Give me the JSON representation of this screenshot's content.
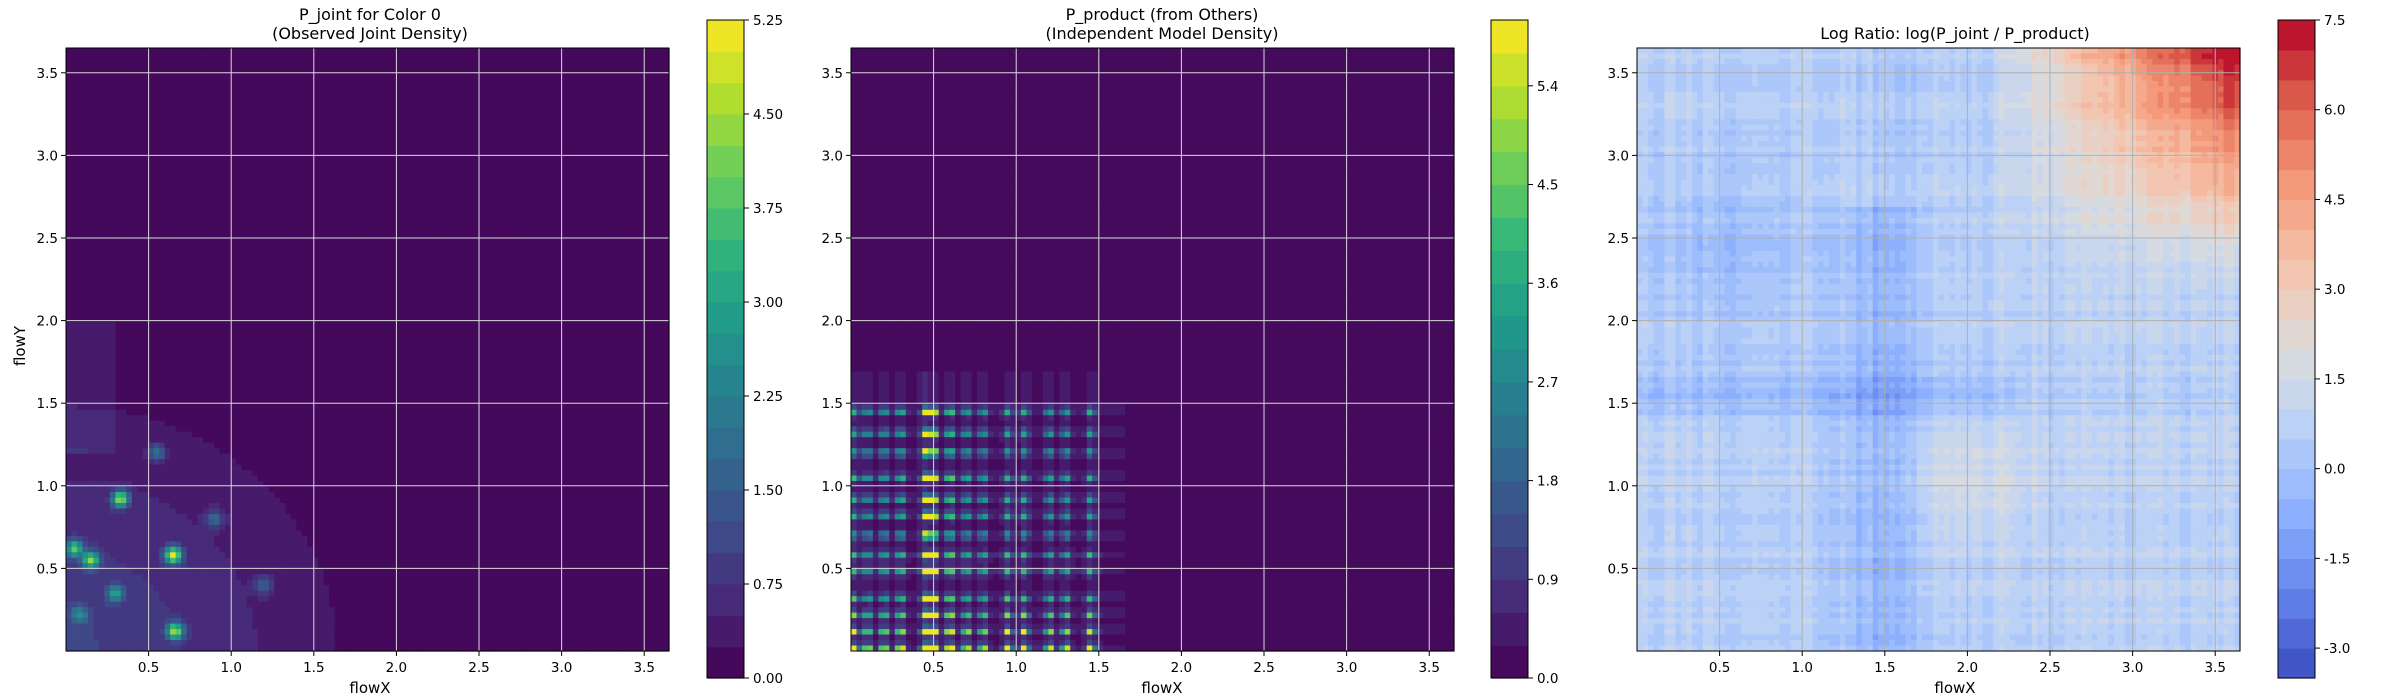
{
  "chart_data": [
    {
      "type": "heatmap",
      "title": "P_joint for Color 0",
      "subtitle": "(Observed Joint Density)",
      "xlabel": "flowX",
      "ylabel": "flowY",
      "xlim": [
        0.0,
        3.65
      ],
      "ylim": [
        0.0,
        3.65
      ],
      "xticks": [
        "0.5",
        "1.0",
        "1.5",
        "2.0",
        "2.5",
        "3.0",
        "3.5"
      ],
      "yticks": [
        "0.5",
        "1.0",
        "1.5",
        "2.0",
        "2.5",
        "3.0",
        "3.5"
      ],
      "grid": true,
      "colormap": "viridis",
      "colorbar": {
        "min": 0.0,
        "max": 5.25,
        "ticks": [
          "0.00",
          "0.75",
          "1.50",
          "2.25",
          "3.00",
          "3.75",
          "4.50",
          "5.25"
        ]
      },
      "density_peaks": [
        {
          "x": 0.05,
          "y": 0.62,
          "value": 3.2
        },
        {
          "x": 0.15,
          "y": 0.55,
          "value": 3.5
        },
        {
          "x": 0.33,
          "y": 0.92,
          "value": 4.0
        },
        {
          "x": 0.65,
          "y": 0.58,
          "value": 4.5
        },
        {
          "x": 0.66,
          "y": 0.12,
          "value": 3.8
        },
        {
          "x": 0.3,
          "y": 0.35,
          "value": 2.2
        },
        {
          "x": 0.08,
          "y": 0.22,
          "value": 1.8
        },
        {
          "x": 0.55,
          "y": 1.2,
          "value": 1.6
        },
        {
          "x": 0.9,
          "y": 0.8,
          "value": 1.4
        },
        {
          "x": 1.2,
          "y": 0.4,
          "value": 1.2
        }
      ]
    },
    {
      "type": "heatmap",
      "title": "P_product (from Others)",
      "subtitle": "(Independent Model Density)",
      "xlabel": "flowX",
      "ylabel": "",
      "xlim": [
        0.0,
        3.65
      ],
      "ylim": [
        0.0,
        3.65
      ],
      "xticks": [
        "0.5",
        "1.0",
        "1.5",
        "2.0",
        "2.5",
        "3.0",
        "3.5"
      ],
      "yticks": [
        "0.5",
        "1.0",
        "1.5",
        "2.0",
        "2.5",
        "3.0",
        "3.5"
      ],
      "grid": true,
      "colormap": "viridis",
      "colorbar": {
        "min": 0.0,
        "max": 6.0,
        "ticks": [
          "0.0",
          "0.9",
          "1.8",
          "2.7",
          "3.6",
          "4.5",
          "5.4"
        ]
      },
      "grid_x": [
        0.02,
        0.1,
        0.2,
        0.3,
        0.45,
        0.5,
        0.6,
        0.7,
        0.8,
        0.95,
        1.05,
        1.2,
        1.3,
        1.45
      ],
      "grid_y": [
        0.02,
        0.12,
        0.22,
        0.32,
        0.48,
        0.58,
        0.7,
        0.82,
        0.92,
        1.05,
        1.2,
        1.32,
        1.45
      ]
    },
    {
      "type": "heatmap",
      "title": "Log Ratio: log(P_joint / P_product)",
      "xlabel": "flowX",
      "ylabel": "",
      "xlim": [
        0.0,
        3.65
      ],
      "ylim": [
        0.0,
        3.65
      ],
      "xticks": [
        "0.5",
        "1.0",
        "1.5",
        "2.0",
        "2.5",
        "3.0",
        "3.5"
      ],
      "yticks": [
        "0.5",
        "1.0",
        "1.5",
        "2.0",
        "2.5",
        "3.0",
        "3.5"
      ],
      "grid": true,
      "colormap": "coolwarm",
      "colorbar": {
        "min": -3.5,
        "max": 7.5,
        "ticks": [
          "-3.0",
          "-1.5",
          "0.0",
          "1.5",
          "3.0",
          "4.5",
          "6.0",
          "7.5"
        ]
      }
    }
  ]
}
